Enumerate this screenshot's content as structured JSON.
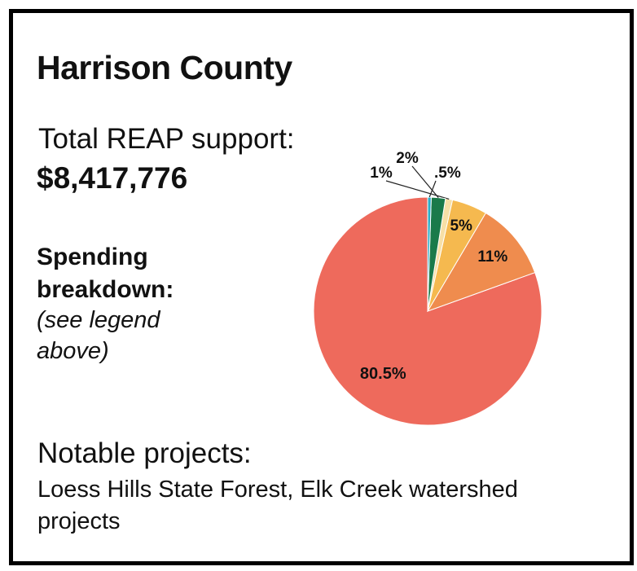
{
  "title": "Harrison County",
  "support": {
    "label": "Total REAP support:",
    "value": "$8,417,776"
  },
  "spending": {
    "title": "Spending breakdown:",
    "note": "(see legend above)"
  },
  "projects": {
    "title": "Notable projects:",
    "text": "Loess Hills State Forest, Elk Creek watershed projects"
  },
  "chart_data": {
    "type": "pie",
    "slices": [
      {
        "label": "80.5%",
        "value": 80.5,
        "color": "#ee6a5c"
      },
      {
        "label": "11%",
        "value": 11,
        "color": "#ef8c4e"
      },
      {
        "label": "5%",
        "value": 5,
        "color": "#f5b94f"
      },
      {
        "label": "1%",
        "value": 1,
        "color": "#f7dfa6"
      },
      {
        "label": "2%",
        "value": 2,
        "color": "#1a7a4a"
      },
      {
        "label": ".5%",
        "value": 0.5,
        "color": "#2aaec9"
      }
    ]
  }
}
